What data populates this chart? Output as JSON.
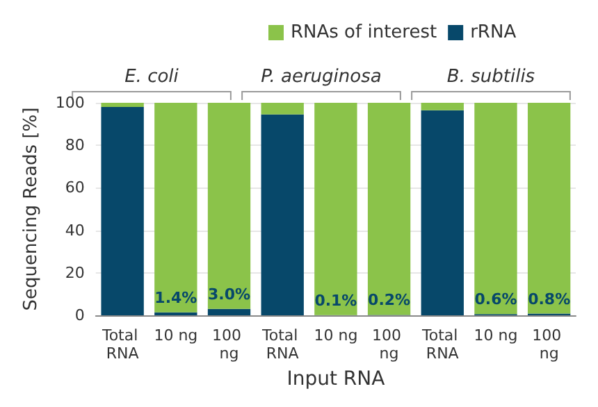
{
  "chart_data": {
    "type": "bar",
    "stacked": true,
    "categories": [
      "Total RNA",
      "10 ng",
      "100 ng",
      "Total RNA",
      "10 ng",
      "100 ng",
      "Total RNA",
      "10 ng",
      "100 ng"
    ],
    "series": [
      {
        "name": "rRNA",
        "color": "#07486a",
        "values": [
          98,
          1.4,
          3.0,
          94.5,
          0.1,
          0.2,
          96.5,
          0.6,
          0.8
        ],
        "value_labels": [
          null,
          "1.4%",
          "3.0%",
          null,
          "0.1%",
          "0.2%",
          null,
          "0.6%",
          "0.8%"
        ]
      },
      {
        "name": "RNAs of interest",
        "color": "#8bc34a",
        "values": [
          2,
          98.6,
          97.0,
          5.5,
          99.9,
          99.8,
          3.5,
          99.4,
          99.2
        ]
      }
    ],
    "xlabel": "Input RNA",
    "ylabel": "Sequencing Reads [%]",
    "annotations": [
      "E. coli",
      "P. aeruginosa",
      "B. subtilis"
    ],
    "ylim": [
      0,
      100
    ],
    "yticks": [
      0,
      20,
      40,
      60,
      80,
      100
    ],
    "grid": "y",
    "legend": "top"
  }
}
